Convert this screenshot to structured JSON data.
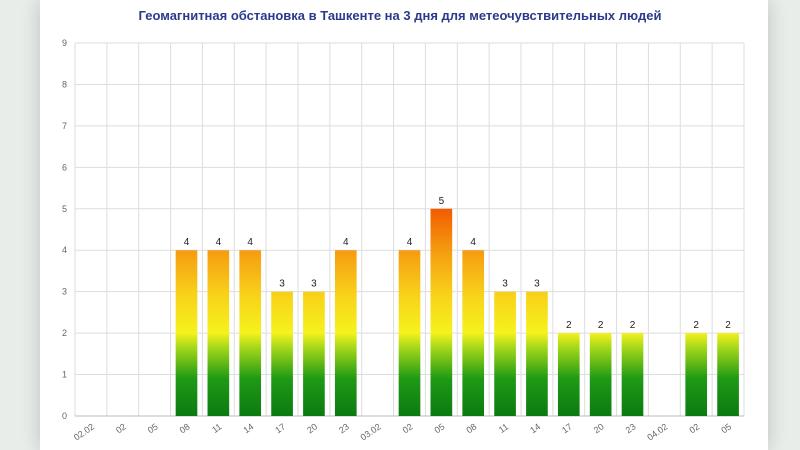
{
  "chart_data": {
    "type": "bar",
    "title": "Геомагнитная обстановка в Ташкенте на 3 дня для метеочувствительных людей",
    "xlabel": "",
    "ylabel": "",
    "ylim": [
      0,
      9
    ],
    "yticks": [
      "0",
      "1",
      "2",
      "3",
      "4",
      "5",
      "6",
      "7",
      "8",
      "9"
    ],
    "grid": true,
    "categories": [
      "02.02",
      "02",
      "05",
      "08",
      "11",
      "14",
      "17",
      "20",
      "23",
      "03.02",
      "02",
      "05",
      "08",
      "11",
      "14",
      "17",
      "20",
      "23",
      "04.02",
      "02",
      "05"
    ],
    "values": [
      0,
      0,
      0,
      4,
      4,
      4,
      3,
      3,
      4,
      0,
      4,
      5,
      4,
      3,
      3,
      2,
      2,
      2,
      0,
      2,
      2
    ],
    "value_labels": [
      "",
      "",
      "",
      "4",
      "4",
      "4",
      "3",
      "3",
      "4",
      "",
      "4",
      "5",
      "4",
      "3",
      "3",
      "2",
      "2",
      "2",
      "",
      "2",
      "2"
    ],
    "colors": {
      "low": "#1a8a1a",
      "mid": "#f2ee1e",
      "high": "#f57a0a",
      "peak": "#f25a00",
      "grid": "#dddddd",
      "title": "#2b3a8c"
    }
  }
}
